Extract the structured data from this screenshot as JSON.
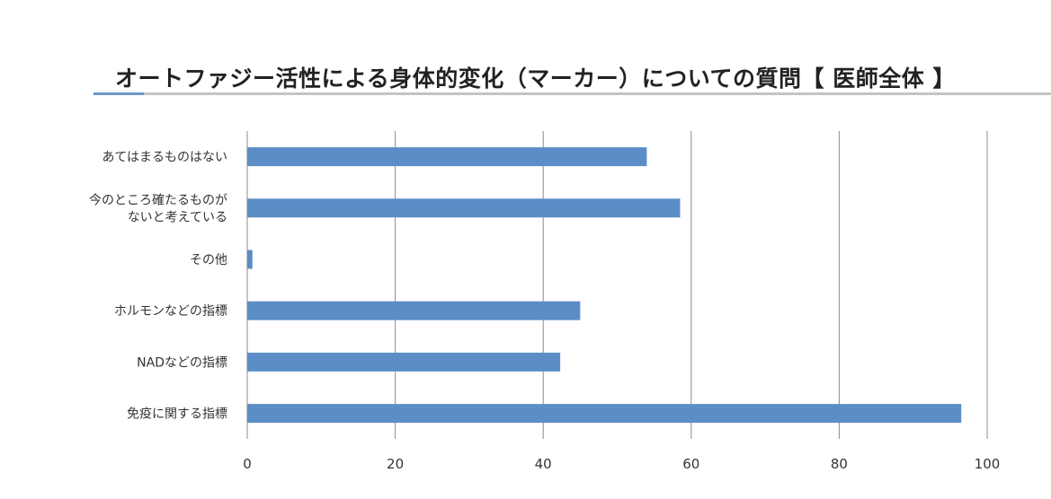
{
  "title": "オートファジー活性による身体的変化（マーカー）についての質問【 医師全体 】",
  "colors": {
    "bar": "#5b8ec7",
    "grid": "#8c8c8c",
    "title_rule": "#c4c4c4",
    "title_accent": "#6a97c9",
    "text": "#333333"
  },
  "chart_data": {
    "type": "bar",
    "orientation": "horizontal",
    "title": "オートファジー活性による身体的変化（マーカー）についての質問【 医師全体 】",
    "categories": [
      "あてはまるものはない",
      "今のところ確たるものが\nないと考えている",
      "その他",
      "ホルモンなどの指標",
      "NADなどの指標",
      "免疫に関する指標"
    ],
    "values": [
      54,
      58.5,
      0.7,
      45,
      42.3,
      96.5
    ],
    "xlim": [
      0,
      100
    ],
    "xticks": [
      0,
      20,
      40,
      60,
      80,
      100
    ],
    "xlabel": "",
    "ylabel": "",
    "grid": "vertical",
    "legend": "none"
  }
}
